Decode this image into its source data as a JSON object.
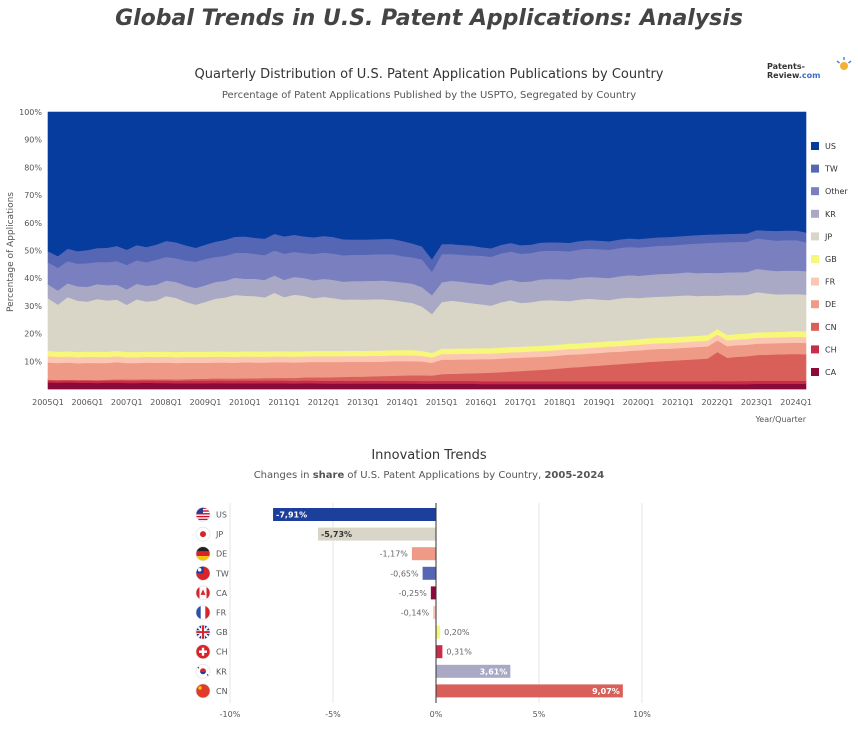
{
  "page": {
    "title": "Global Trends in U.S. Patent Applications: Analysis",
    "logo_main": "Patents-Review",
    "logo_suffix": ".com"
  },
  "chart_data": [
    {
      "type": "area",
      "stacking": "percent",
      "title": "Quarterly Distribution of U.S. Patent Application Publications by Country",
      "subtitle": "Percentage of Patent Applications Published by the USPTO, Segregated by Country",
      "xlabel": "Year/Quarter",
      "ylabel": "Percentage of Applications",
      "ylim": [
        0,
        100
      ],
      "yticks": [
        10,
        20,
        30,
        40,
        50,
        60,
        70,
        80,
        90,
        100
      ],
      "grid": true,
      "legend": "right",
      "xtick_labels": [
        "2005Q1",
        "2006Q1",
        "2007Q1",
        "2008Q1",
        "2009Q1",
        "2010Q1",
        "2011Q1",
        "2012Q1",
        "2013Q1",
        "2014Q1",
        "2015Q1",
        "2016Q1",
        "2017Q1",
        "2018Q1",
        "2019Q1",
        "2020Q1",
        "2021Q1",
        "2022Q1",
        "2023Q1",
        "2024Q1"
      ],
      "x": [
        "2005Q1",
        "2005Q2",
        "2005Q3",
        "2005Q4",
        "2006Q1",
        "2006Q2",
        "2006Q3",
        "2006Q4",
        "2007Q1",
        "2007Q2",
        "2007Q3",
        "2007Q4",
        "2008Q1",
        "2008Q2",
        "2008Q3",
        "2008Q4",
        "2009Q1",
        "2009Q2",
        "2009Q3",
        "2009Q4",
        "2010Q1",
        "2010Q2",
        "2010Q3",
        "2010Q4",
        "2011Q1",
        "2011Q2",
        "2011Q3",
        "2011Q4",
        "2012Q1",
        "2012Q2",
        "2012Q3",
        "2012Q4",
        "2013Q1",
        "2013Q2",
        "2013Q3",
        "2013Q4",
        "2014Q1",
        "2014Q2",
        "2014Q3",
        "2014Q4",
        "2015Q1",
        "2015Q2",
        "2015Q3",
        "2015Q4",
        "2016Q1",
        "2016Q2",
        "2016Q3",
        "2016Q4",
        "2017Q1",
        "2017Q2",
        "2017Q3",
        "2017Q4",
        "2018Q1",
        "2018Q2",
        "2018Q3",
        "2018Q4",
        "2019Q1",
        "2019Q2",
        "2019Q3",
        "2019Q4",
        "2020Q1",
        "2020Q2",
        "2020Q3",
        "2020Q4",
        "2021Q1",
        "2021Q2",
        "2021Q3",
        "2021Q4",
        "2022Q1",
        "2022Q2",
        "2022Q3",
        "2022Q4",
        "2023Q1",
        "2023Q2",
        "2023Q3",
        "2023Q4",
        "2024Q1",
        "2024Q2"
      ],
      "series": [
        {
          "name": "CA",
          "color": "#8a0a3a",
          "values": [
            2.4,
            2.3,
            2.4,
            2.3,
            2.3,
            2.2,
            2.3,
            2.3,
            2.2,
            2.2,
            2.3,
            2.2,
            2.2,
            2.1,
            2.1,
            2.1,
            2.1,
            2.2,
            2.1,
            2.1,
            2.1,
            2.1,
            2.1,
            2.1,
            2.1,
            2.0,
            2.1,
            2.1,
            2.0,
            2.0,
            2.0,
            2.0,
            2.0,
            2.0,
            2.0,
            2.0,
            2.0,
            2.0,
            1.9,
            1.9,
            1.9,
            1.9,
            1.9,
            1.9,
            1.8,
            1.8,
            1.8,
            1.8,
            1.8,
            1.8,
            1.8,
            1.8,
            1.8,
            1.8,
            1.8,
            1.8,
            1.8,
            1.8,
            1.8,
            1.8,
            1.8,
            1.8,
            1.8,
            1.8,
            1.8,
            1.8,
            1.8,
            1.8,
            1.8,
            1.8,
            1.8,
            1.8,
            1.9,
            1.9,
            1.9,
            1.9,
            1.9,
            1.9
          ]
        },
        {
          "name": "CH",
          "color": "#c72c48",
          "values": [
            0.8,
            0.8,
            0.8,
            0.8,
            0.8,
            0.8,
            0.8,
            0.9,
            0.9,
            0.9,
            0.9,
            0.9,
            0.9,
            0.9,
            1.0,
            1.0,
            1.0,
            1.0,
            1.0,
            1.0,
            1.0,
            1.0,
            1.0,
            1.0,
            1.0,
            1.0,
            1.0,
            1.0,
            1.0,
            1.0,
            1.0,
            1.0,
            1.0,
            1.0,
            1.0,
            1.0,
            1.0,
            1.0,
            1.0,
            1.0,
            1.0,
            1.0,
            1.0,
            1.0,
            1.0,
            1.0,
            1.0,
            1.0,
            1.0,
            1.0,
            1.0,
            1.0,
            1.0,
            1.0,
            1.0,
            1.0,
            1.0,
            1.0,
            1.0,
            1.0,
            1.0,
            1.0,
            1.0,
            1.0,
            1.0,
            1.0,
            1.0,
            1.0,
            1.1,
            1.1,
            1.1,
            1.1,
            1.1,
            1.1,
            1.1,
            1.1,
            1.1,
            1.1
          ]
        },
        {
          "name": "CN",
          "color": "#d9605a",
          "values": [
            0.2,
            0.2,
            0.2,
            0.2,
            0.3,
            0.3,
            0.3,
            0.3,
            0.4,
            0.4,
            0.4,
            0.4,
            0.5,
            0.5,
            0.5,
            0.6,
            0.6,
            0.7,
            0.7,
            0.7,
            0.8,
            0.8,
            0.9,
            0.9,
            1.0,
            1.0,
            1.1,
            1.2,
            1.2,
            1.3,
            1.4,
            1.5,
            1.5,
            1.6,
            1.7,
            1.8,
            1.9,
            2.0,
            2.1,
            2.0,
            2.4,
            2.5,
            2.6,
            2.7,
            2.9,
            3.0,
            3.2,
            3.4,
            3.6,
            3.8,
            4.0,
            4.2,
            4.5,
            4.8,
            5.0,
            5.3,
            5.5,
            5.8,
            6.0,
            6.3,
            6.5,
            6.8,
            7.0,
            7.2,
            7.4,
            7.6,
            7.8,
            8.0,
            10.5,
            8.5,
            8.8,
            9.0,
            9.3,
            9.4,
            9.5,
            9.6,
            9.7,
            9.6
          ]
        },
        {
          "name": "DE",
          "color": "#ee9a86",
          "values": [
            6.2,
            6.1,
            6.2,
            6.0,
            6.1,
            6.1,
            6.0,
            6.2,
            5.9,
            5.9,
            6.0,
            6.0,
            6.0,
            5.9,
            5.9,
            5.8,
            5.8,
            5.7,
            5.8,
            5.7,
            5.8,
            5.7,
            5.6,
            5.7,
            5.6,
            5.6,
            5.5,
            5.5,
            5.6,
            5.5,
            5.4,
            5.4,
            5.3,
            5.3,
            5.2,
            5.3,
            5.2,
            5.1,
            5.0,
            4.6,
            5.1,
            5.0,
            5.0,
            4.9,
            4.9,
            4.8,
            4.8,
            4.8,
            4.7,
            4.7,
            4.6,
            4.6,
            4.6,
            4.6,
            4.5,
            4.5,
            4.5,
            4.5,
            4.4,
            4.4,
            4.4,
            4.4,
            4.4,
            4.3,
            4.3,
            4.3,
            4.3,
            4.3,
            4.2,
            4.2,
            4.2,
            4.2,
            4.1,
            4.1,
            4.1,
            4.1,
            4.1,
            4.1
          ]
        },
        {
          "name": "FR",
          "color": "#fcc7b2",
          "values": [
            2.3,
            2.2,
            2.2,
            2.2,
            2.2,
            2.2,
            2.2,
            2.2,
            2.1,
            2.1,
            2.1,
            2.1,
            2.1,
            2.1,
            2.1,
            2.1,
            2.1,
            2.1,
            2.1,
            2.1,
            2.1,
            2.1,
            2.1,
            2.1,
            2.1,
            2.1,
            2.1,
            2.1,
            2.1,
            2.1,
            2.1,
            2.1,
            2.1,
            2.1,
            2.1,
            2.1,
            2.1,
            2.1,
            2.0,
            1.9,
            2.0,
            2.0,
            2.0,
            2.0,
            2.0,
            2.0,
            2.0,
            2.0,
            2.0,
            2.0,
            2.0,
            2.0,
            2.0,
            2.0,
            2.0,
            2.0,
            2.0,
            2.0,
            2.0,
            2.0,
            2.0,
            2.0,
            2.0,
            2.0,
            2.0,
            2.0,
            2.0,
            2.0,
            2.1,
            2.1,
            2.1,
            2.1,
            2.1,
            2.1,
            2.1,
            2.1,
            2.1,
            2.1
          ]
        },
        {
          "name": "GB",
          "color": "#f7f77a",
          "values": [
            1.9,
            1.9,
            1.9,
            1.9,
            1.9,
            1.9,
            1.9,
            1.9,
            1.9,
            1.9,
            1.9,
            1.9,
            1.9,
            1.9,
            1.9,
            1.9,
            1.9,
            1.9,
            1.9,
            1.9,
            1.9,
            1.9,
            1.9,
            1.9,
            1.9,
            1.9,
            1.9,
            1.9,
            1.9,
            1.9,
            1.9,
            1.9,
            1.9,
            1.9,
            1.9,
            1.9,
            1.9,
            1.9,
            1.8,
            1.7,
            1.9,
            1.9,
            1.9,
            1.9,
            1.9,
            1.9,
            1.9,
            1.9,
            1.9,
            1.9,
            1.9,
            1.9,
            1.9,
            1.9,
            1.9,
            1.9,
            1.9,
            1.9,
            1.9,
            1.9,
            2.0,
            2.0,
            2.0,
            2.0,
            2.0,
            2.0,
            2.0,
            2.0,
            2.0,
            2.0,
            2.0,
            2.0,
            2.0,
            2.0,
            2.0,
            2.0,
            2.1,
            2.1
          ]
        },
        {
          "name": "JP",
          "color": "#d9d6c7",
          "values": [
            19.0,
            17.0,
            19.5,
            18.5,
            18.0,
            19.0,
            18.5,
            18.5,
            17.0,
            19.0,
            18.0,
            18.5,
            20.0,
            19.5,
            18.0,
            17.0,
            18.0,
            19.0,
            19.5,
            20.5,
            20.0,
            20.0,
            19.5,
            21.0,
            19.5,
            20.5,
            20.0,
            19.0,
            19.5,
            19.0,
            18.5,
            18.5,
            18.5,
            18.5,
            18.5,
            18.0,
            17.5,
            17.0,
            16.0,
            14.0,
            16.5,
            17.0,
            16.5,
            16.0,
            15.5,
            15.0,
            16.0,
            16.5,
            15.5,
            15.5,
            16.0,
            16.0,
            15.5,
            15.0,
            15.5,
            15.5,
            15.0,
            14.5,
            15.0,
            15.0,
            14.5,
            14.5,
            14.5,
            14.5,
            14.5,
            14.5,
            14.0,
            14.0,
            12.0,
            14.5,
            14.0,
            14.0,
            14.5,
            14.0,
            13.5,
            13.5,
            13.3,
            13.3
          ]
        },
        {
          "name": "KR",
          "color": "#a9a9c6",
          "values": [
            5.0,
            5.1,
            5.0,
            5.2,
            5.3,
            5.4,
            5.5,
            5.4,
            5.6,
            5.6,
            5.7,
            5.7,
            5.6,
            5.8,
            5.9,
            6.0,
            6.0,
            6.1,
            6.0,
            6.2,
            6.1,
            6.2,
            6.3,
            6.3,
            6.2,
            6.4,
            6.4,
            6.5,
            6.5,
            6.6,
            6.5,
            6.6,
            6.7,
            6.7,
            6.8,
            6.8,
            6.9,
            7.0,
            7.0,
            6.8,
            7.0,
            7.0,
            7.1,
            7.1,
            7.2,
            7.3,
            7.3,
            7.3,
            7.4,
            7.4,
            7.5,
            7.5,
            7.6,
            7.6,
            7.7,
            7.7,
            7.8,
            7.8,
            7.8,
            7.9,
            7.9,
            7.9,
            8.0,
            8.0,
            8.0,
            8.1,
            8.1,
            8.1,
            8.2,
            8.2,
            8.3,
            8.3,
            8.4,
            8.4,
            8.4,
            8.5,
            8.5,
            8.5
          ]
        },
        {
          "name": "Other",
          "color": "#7a7fbf",
          "values": [
            8.0,
            8.2,
            8.0,
            8.2,
            8.5,
            8.0,
            8.3,
            8.5,
            8.8,
            8.5,
            8.5,
            9.0,
            8.5,
            8.5,
            9.0,
            9.5,
            9.5,
            9.0,
            9.0,
            9.0,
            9.5,
            9.0,
            9.0,
            9.0,
            9.5,
            9.0,
            9.0,
            9.5,
            9.5,
            9.5,
            9.5,
            9.5,
            9.5,
            9.5,
            9.5,
            9.8,
            9.5,
            9.5,
            10.0,
            8.5,
            10.0,
            9.5,
            9.5,
            9.8,
            10.0,
            10.0,
            10.0,
            10.0,
            10.0,
            10.0,
            10.0,
            10.0,
            10.0,
            10.0,
            10.0,
            10.0,
            10.0,
            10.0,
            10.0,
            10.0,
            10.0,
            10.0,
            10.0,
            10.0,
            10.0,
            10.0,
            10.5,
            10.5,
            11.0,
            11.0,
            11.0,
            11.0,
            11.0,
            11.0,
            11.0,
            11.0,
            11.0,
            10.5
          ]
        },
        {
          "name": "TW",
          "color": "#5566b5",
          "values": [
            4.0,
            4.2,
            4.5,
            4.5,
            4.8,
            5.0,
            5.2,
            5.5,
            5.5,
            5.5,
            5.5,
            5.5,
            5.8,
            5.8,
            5.5,
            5.0,
            5.2,
            5.5,
            5.8,
            5.8,
            5.8,
            5.8,
            5.9,
            6.0,
            6.2,
            6.2,
            6.0,
            6.0,
            6.0,
            6.0,
            5.8,
            5.5,
            5.5,
            5.5,
            5.5,
            5.5,
            5.5,
            5.0,
            4.7,
            4.5,
            3.5,
            3.5,
            3.5,
            3.5,
            3.0,
            3.0,
            3.0,
            3.0,
            3.0,
            3.0,
            3.0,
            3.0,
            3.0,
            3.0,
            3.0,
            3.0,
            3.0,
            3.0,
            3.0,
            3.0,
            3.0,
            3.0,
            3.0,
            3.0,
            3.0,
            3.0,
            3.0,
            3.0,
            3.0,
            3.0,
            3.0,
            3.0,
            3.0,
            3.2,
            3.5,
            3.5,
            3.5,
            3.5
          ]
        },
        {
          "name": "US",
          "color": "#063c9e",
          "values": [
            50.2,
            52.0,
            49.3,
            50.2,
            49.8,
            49.1,
            49.0,
            48.3,
            49.7,
            48.0,
            48.7,
            47.8,
            46.5,
            47.0,
            48.1,
            49.0,
            47.8,
            46.8,
            46.1,
            45.0,
            44.9,
            45.4,
            45.7,
            43.9,
            44.9,
            44.3,
            44.9,
            45.2,
            44.7,
            45.1,
            45.9,
            46.0,
            46.0,
            45.9,
            45.8,
            45.8,
            46.5,
            47.4,
            48.5,
            53.1,
            46.7,
            46.7,
            47.0,
            47.2,
            47.8,
            48.2,
            47.0,
            46.3,
            47.1,
            46.9,
            46.2,
            46.0,
            46.1,
            46.2,
            45.6,
            45.3,
            45.5,
            45.7,
            45.1,
            44.7,
            44.9,
            44.6,
            44.3,
            44.2,
            44.0,
            43.7,
            43.5,
            43.3,
            44.1,
            44.3,
            44.0,
            44.1,
            42.6,
            42.8,
            42.9,
            42.8,
            42.7,
            43.6
          ]
        }
      ]
    },
    {
      "type": "bar",
      "orientation": "horizontal",
      "title": "Innovation Trends",
      "subtitle_pre": "Changes in ",
      "subtitle_bold": "share",
      "subtitle_mid": " of U.S. Patent Applications by Country, ",
      "subtitle_range": "2005-2024",
      "categories": [
        "US",
        "JP",
        "DE",
        "TW",
        "CA",
        "FR",
        "GB",
        "CH",
        "KR",
        "CN"
      ],
      "values": [
        -7.91,
        -5.73,
        -1.17,
        -0.65,
        -0.25,
        -0.14,
        0.2,
        0.31,
        3.61,
        9.07
      ],
      "labels": [
        "-7,91%",
        "-5,73%",
        "-1,17%",
        "-0,65%",
        "-0,25%",
        "-0,14%",
        "0,20%",
        "0,31%",
        "3,61%",
        "9,07%"
      ],
      "colors": [
        "#1d3f9c",
        "#d9d6c7",
        "#ee9a86",
        "#5566b5",
        "#8a0a3a",
        "#fcc7b2",
        "#f7f77a",
        "#c72c48",
        "#a9a9c6",
        "#d9605a"
      ],
      "xlim": [
        -10,
        10
      ],
      "xticks": [
        -10,
        -5,
        0,
        5,
        10
      ],
      "xtick_labels": [
        "-10%",
        "-5%",
        "0%",
        "5%",
        "10%"
      ],
      "grid": true
    }
  ]
}
